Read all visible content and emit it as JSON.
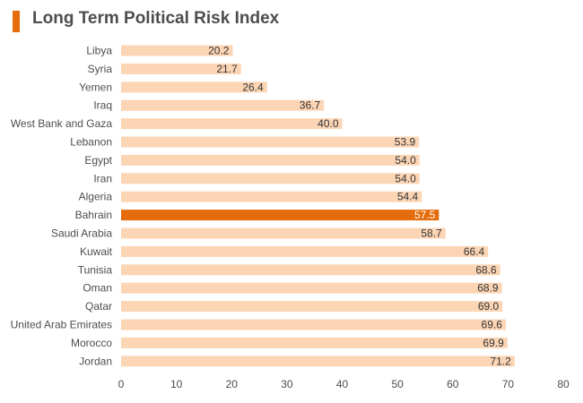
{
  "header": {
    "title": "Long Term Political Risk Index"
  },
  "colors": {
    "accent": "#E46C0A",
    "bar": "#FCD5B5",
    "highlight_bar": "#E46C0A",
    "text": "#4D4D4D"
  },
  "chart_data": {
    "type": "bar",
    "orientation": "horizontal",
    "title": "Long Term Political Risk Index",
    "xlabel": "",
    "ylabel": "",
    "xlim": [
      0,
      80
    ],
    "x_ticks": [
      0,
      10,
      20,
      30,
      40,
      50,
      60,
      70,
      80
    ],
    "grid": false,
    "legend": "none",
    "highlight": "Bahrain",
    "categories": [
      "Libya",
      "Syria",
      "Yemen",
      "Iraq",
      "West Bank and Gaza",
      "Lebanon",
      "Egypt",
      "Iran",
      "Algeria",
      "Bahrain",
      "Saudi Arabia",
      "Kuwait",
      "Tunisia",
      "Oman",
      "Qatar",
      "United Arab Emirates",
      "Morocco",
      "Jordan"
    ],
    "values": [
      20.2,
      21.7,
      26.4,
      36.7,
      40.0,
      53.9,
      54.0,
      54.0,
      54.4,
      57.5,
      58.7,
      66.4,
      68.6,
      68.9,
      69.0,
      69.6,
      69.9,
      71.2
    ],
    "value_labels": [
      "20.2",
      "21.7",
      "26.4",
      "36.7",
      "40.0",
      "53.9",
      "54.0",
      "54.0",
      "54.4",
      "57.5",
      "58.7",
      "66.4",
      "68.6",
      "68.9",
      "69.0",
      "69.6",
      "69.9",
      "71.2"
    ]
  }
}
